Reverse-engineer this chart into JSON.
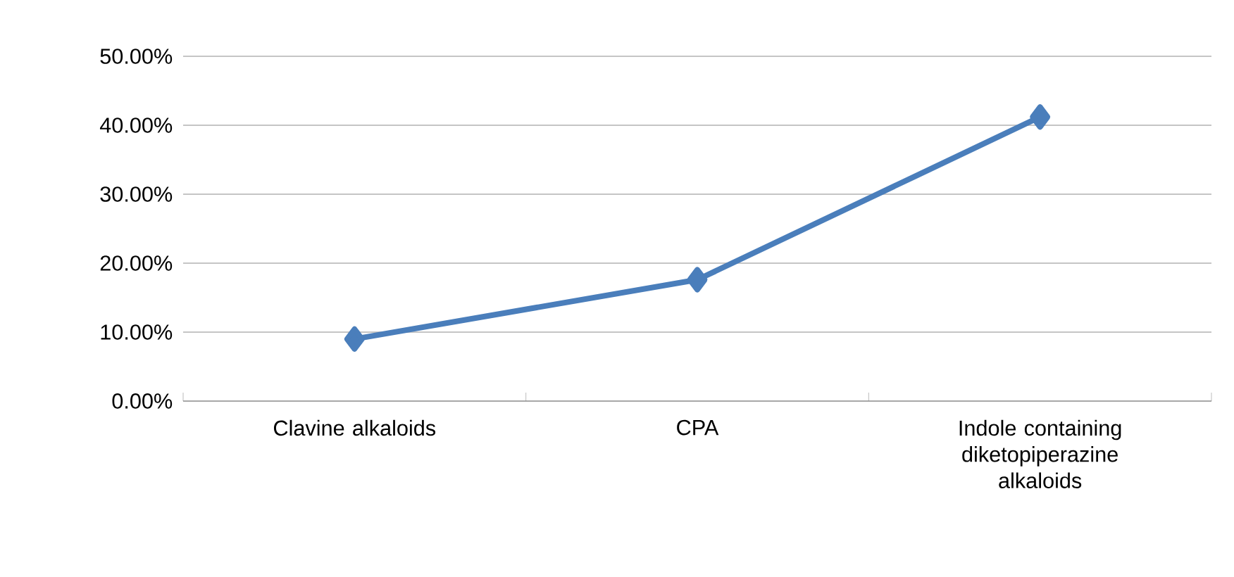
{
  "chart_data": {
    "type": "line",
    "categories": [
      "Clavine alkaloids",
      "CPA",
      "Indole containing diketopiperazine alkaloids"
    ],
    "series": [
      {
        "color": "#4a7ebb",
        "values": [
          9.0,
          17.6,
          41.2
        ]
      }
    ],
    "ylim": [
      0,
      50
    ],
    "yticks": [
      {
        "value": 0,
        "label": "0.00%"
      },
      {
        "value": 10,
        "label": "10.00%"
      },
      {
        "value": 20,
        "label": "20.00%"
      },
      {
        "value": 30,
        "label": "30.00%"
      },
      {
        "value": 40,
        "label": "40.00%"
      },
      {
        "value": 50,
        "label": "50.00%"
      }
    ],
    "grid": "y",
    "marker": "diamond",
    "line_style": "solid"
  }
}
